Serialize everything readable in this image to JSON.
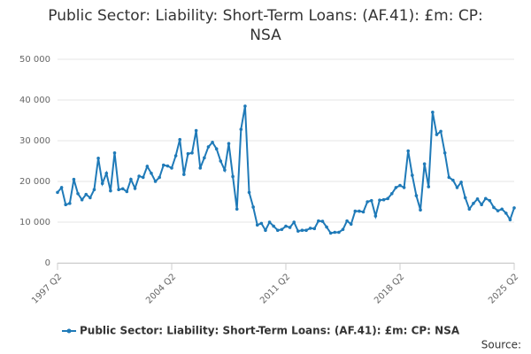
{
  "chart_data": {
    "type": "line",
    "title": "Public Sector: Liability: Short-Term Loans: (AF.41): £m: CP: NSA",
    "categories": [
      "1997 Q2",
      null,
      null,
      null,
      null,
      null,
      null,
      null,
      null,
      null,
      null,
      null,
      null,
      null,
      null,
      null,
      null,
      null,
      null,
      null,
      null,
      null,
      null,
      null,
      null,
      null,
      null,
      null,
      "2004 Q2",
      null,
      null,
      null,
      null,
      null,
      null,
      null,
      null,
      null,
      null,
      null,
      null,
      null,
      null,
      null,
      null,
      null,
      null,
      null,
      null,
      null,
      null,
      null,
      null,
      null,
      null,
      null,
      "2011 Q2",
      null,
      null,
      null,
      null,
      null,
      null,
      null,
      null,
      null,
      null,
      null,
      null,
      null,
      null,
      null,
      null,
      null,
      null,
      null,
      null,
      null,
      null,
      null,
      null,
      null,
      null,
      null,
      "2018 Q2",
      null,
      null,
      null,
      null,
      null,
      null,
      null,
      null,
      null,
      null,
      null,
      null,
      null,
      null,
      null,
      null,
      null,
      null,
      null,
      null,
      null,
      null,
      null,
      null,
      null,
      null,
      null,
      "2025 Q2"
    ],
    "series": [
      {
        "name": "Public Sector: Liability: Short-Term Loans: (AF.41): £m: CP: NSA",
        "color": "#1f7ab8",
        "values": [
          17300,
          18500,
          14300,
          14600,
          20500,
          17000,
          15500,
          16800,
          16000,
          18000,
          25700,
          19500,
          22000,
          17700,
          27000,
          18000,
          18200,
          17500,
          20500,
          18300,
          21300,
          21000,
          23700,
          22000,
          20000,
          21000,
          24000,
          23800,
          23300,
          26300,
          30300,
          21700,
          26800,
          27000,
          32500,
          23300,
          25800,
          28500,
          29600,
          28000,
          25000,
          22800,
          29300,
          21200,
          13200,
          32800,
          38500,
          17300,
          13700,
          9300,
          9700,
          8000,
          10000,
          9000,
          8000,
          8200,
          9000,
          8700,
          10000,
          7800,
          8000,
          8000,
          8500,
          8400,
          10300,
          10200,
          8800,
          7300,
          7500,
          7500,
          8200,
          10300,
          9500,
          12700,
          12700,
          12500,
          15000,
          15300,
          11500,
          15400,
          15500,
          15800,
          17000,
          18500,
          19000,
          18500,
          27500,
          21500,
          16500,
          13000,
          24300,
          18700,
          37000,
          31500,
          32300,
          27000,
          21000,
          20300,
          18500,
          19800,
          16000,
          13200,
          14600,
          15700,
          14300,
          15800,
          15300,
          13600,
          12800,
          13200,
          12200,
          10600,
          13500
        ]
      }
    ],
    "ylim": [
      0,
      50000
    ],
    "yticks": [
      0,
      {
        "value": 10000,
        "label": "10 000"
      },
      {
        "value": 20000,
        "label": "20 000"
      },
      {
        "value": 30000,
        "label": "30 000"
      },
      {
        "value": 40000,
        "label": "40 000"
      },
      {
        "value": 50000,
        "label": "50 000"
      }
    ],
    "grid": true,
    "legend": "bottom",
    "source": "Source:"
  }
}
